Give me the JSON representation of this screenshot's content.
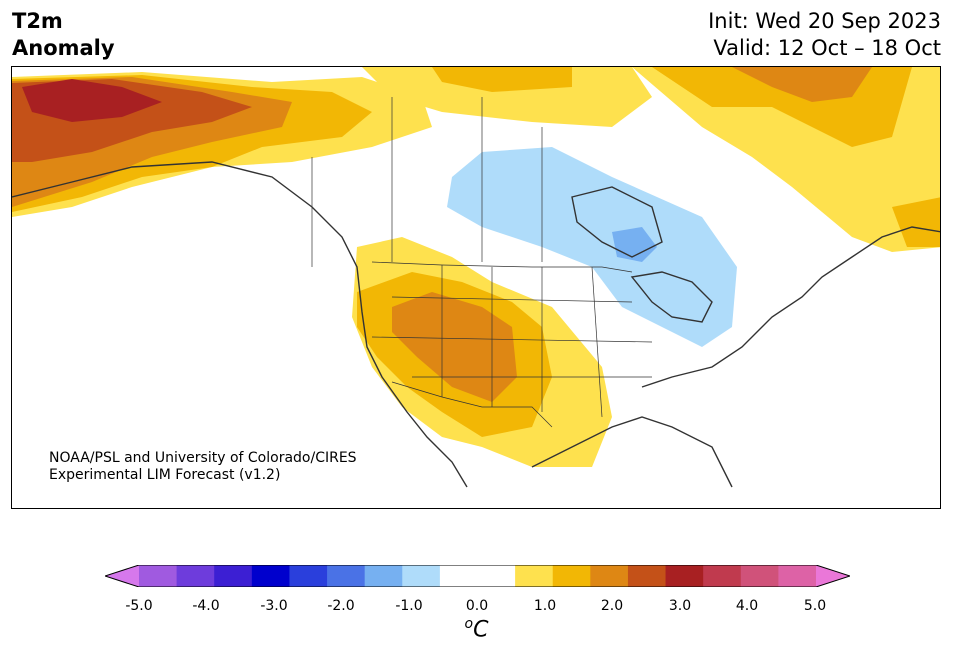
{
  "header": {
    "title_line1": "T2m",
    "title_line2": "Anomaly",
    "init": "Init: Wed 20 Sep 2023",
    "valid": "Valid: 12 Oct – 18 Oct"
  },
  "credit": {
    "line1": "NOAA/PSL and University of Colorado/CIRES",
    "line2": "Experimental LIM Forecast (v1.2)"
  },
  "colorbar": {
    "colors": [
      "#d678ec",
      "#a05ae0",
      "#6e3cdc",
      "#3c1fd3",
      "#0000cd",
      "#2a3fdc",
      "#4a72e6",
      "#76b0f1",
      "#afdcfa",
      "#ffffff",
      "#ffffff",
      "#fee14e",
      "#f2b705",
      "#de8714",
      "#c45118",
      "#a82022",
      "#c03a4e",
      "#d0527a",
      "#dd62a6",
      "#ea77d8"
    ],
    "tick_labels": [
      "-5.0",
      "-4.0",
      "-3.0",
      "-2.0",
      "-1.0",
      "0.0",
      "1.0",
      "2.0",
      "3.0",
      "4.0",
      "5.0"
    ],
    "unit_main": "C",
    "unit_sup": "o"
  },
  "map_colors": {
    "lightblue": "#afdcfa",
    "blue": "#76b0f1",
    "yellow": "#fee14e",
    "gold": "#f2b705",
    "orange": "#de8714",
    "darkorange": "#c45118",
    "red": "#a82022",
    "land_line": "#333333"
  }
}
